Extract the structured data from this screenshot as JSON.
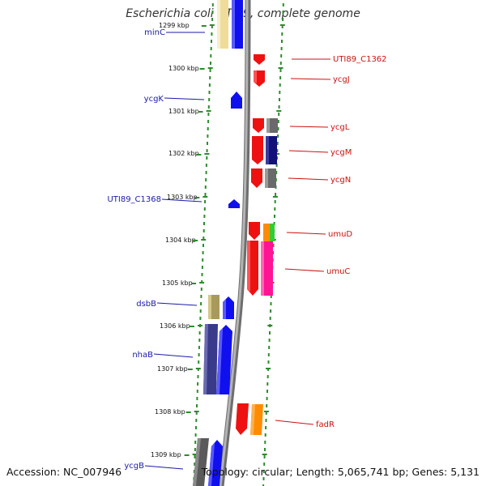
{
  "title": "Escherichia coli UTI89, complete genome",
  "accession_text": "Accession: NC_007946",
  "topology_text": "Topology: circular; Length: 5,065,741 bp; Genes: 5,131",
  "colors": {
    "backbone": "#8a8a8a",
    "dots": "#2e8b2e",
    "left_label": "#1a1aa8",
    "right_label": "#cc1111"
  },
  "ticks": [
    "1299 kbp",
    "1300 kbp",
    "1301 kbp",
    "1302 kbp",
    "1303 kbp",
    "1304 kbp",
    "1305 kbp",
    "1306 kbp",
    "1307 kbp",
    "1308 kbp",
    "1309 kbp"
  ],
  "labels_left": [
    "minC",
    "ycgK",
    "UTI89_C1368",
    "dsbB",
    "nhaB",
    "ycgB"
  ],
  "labels_right": [
    "UTI89_C1362",
    "ycgJ",
    "ycgL",
    "ycgM",
    "ycgN",
    "umuD",
    "umuC",
    "fadR"
  ]
}
